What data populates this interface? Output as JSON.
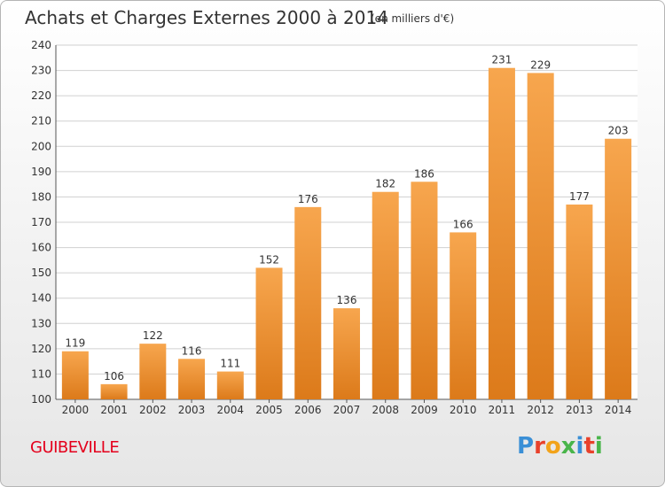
{
  "header": {
    "title": "Achats et Charges Externes 2000 à 2014",
    "unit": "(en milliers d'€)"
  },
  "commune": "GUIBEVILLE",
  "logo": {
    "letters": [
      "P",
      "r",
      "o",
      "x",
      "i",
      "t",
      "i"
    ]
  },
  "colors": {
    "bar_light": "#f7a64e",
    "bar_dark": "#dc7a1a",
    "grid": "#d0d0d0",
    "axis": "#555555",
    "commune": "#e4001c"
  },
  "chart_data": {
    "type": "bar",
    "categories": [
      "2000",
      "2001",
      "2002",
      "2003",
      "2004",
      "2005",
      "2006",
      "2007",
      "2008",
      "2009",
      "2010",
      "2011",
      "2012",
      "2013",
      "2014"
    ],
    "values": [
      119,
      106,
      122,
      116,
      111,
      152,
      176,
      136,
      182,
      186,
      166,
      231,
      229,
      177,
      203
    ],
    "ylim": [
      100,
      240
    ],
    "yticks": [
      100,
      110,
      120,
      130,
      140,
      150,
      160,
      170,
      180,
      190,
      200,
      210,
      220,
      230,
      240
    ],
    "grid": true
  }
}
